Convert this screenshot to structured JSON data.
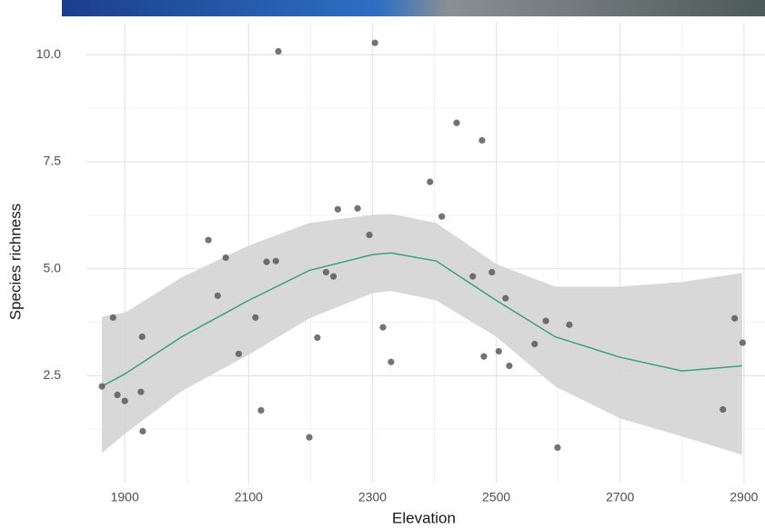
{
  "chart_data": {
    "type": "scatter",
    "x_label": "Elevation",
    "y_label": "Species richness",
    "xlim": [
      1838,
      2934
    ],
    "ylim": [
      0,
      10.75
    ],
    "xticks": [
      1900,
      2100,
      2300,
      2500,
      2700,
      2900
    ],
    "yticks": [
      {
        "value": 2.5,
        "label": "2.5"
      },
      {
        "value": 5,
        "label": "5.0"
      },
      {
        "value": 7.5,
        "label": "7.5"
      },
      {
        "value": 10,
        "label": "10.0"
      }
    ],
    "xminor": [
      2000,
      2200,
      2400,
      2600,
      2800
    ],
    "yminor": [
      1.25,
      3.75,
      6.25,
      8.75
    ],
    "grid": true,
    "points": {
      "color": "#5a5a5a",
      "x": [
        1863,
        1881,
        1888,
        1900,
        1928,
        1926,
        1929,
        2035,
        2050,
        2063,
        2084,
        2111,
        2120,
        2129,
        2144,
        2148,
        2198,
        2211,
        2225,
        2237,
        2244,
        2276,
        2295,
        2304,
        2317,
        2330,
        2393,
        2412,
        2436,
        2462,
        2477,
        2480,
        2493,
        2504,
        2515,
        2521,
        2562,
        2580,
        2599,
        2618,
        2866,
        2885,
        2898
      ],
      "y": [
        2.25,
        3.86,
        2.05,
        1.91,
        3.41,
        2.12,
        1.2,
        5.67,
        4.37,
        5.26,
        3.01,
        3.86,
        1.69,
        5.16,
        5.18,
        10.08,
        1.06,
        3.39,
        4.92,
        4.82,
        6.39,
        6.41,
        5.79,
        10.28,
        3.63,
        2.82,
        7.03,
        6.22,
        8.41,
        4.82,
        8.0,
        2.95,
        4.92,
        3.07,
        4.31,
        2.73,
        3.24,
        3.78,
        0.82,
        3.69,
        1.71,
        3.84,
        3.27
      ]
    },
    "fit": {
      "color": "#3a9e82",
      "band_color": "#d4d4d4",
      "x": [
        1863,
        1900,
        1992,
        2100,
        2198,
        2300,
        2330,
        2403,
        2500,
        2595,
        2700,
        2800,
        2897
      ],
      "y": [
        2.25,
        2.54,
        3.41,
        4.26,
        4.96,
        5.33,
        5.37,
        5.18,
        4.26,
        3.41,
        2.93,
        2.61,
        2.73
      ],
      "lower": [
        0.69,
        1.14,
        2.14,
        2.99,
        3.84,
        4.43,
        4.48,
        4.26,
        3.41,
        2.25,
        1.5,
        1.08,
        0.65
      ],
      "upper": [
        3.88,
        3.97,
        4.8,
        5.54,
        6.07,
        6.26,
        6.28,
        6.07,
        5.11,
        4.58,
        4.58,
        4.69,
        4.9
      ]
    }
  }
}
